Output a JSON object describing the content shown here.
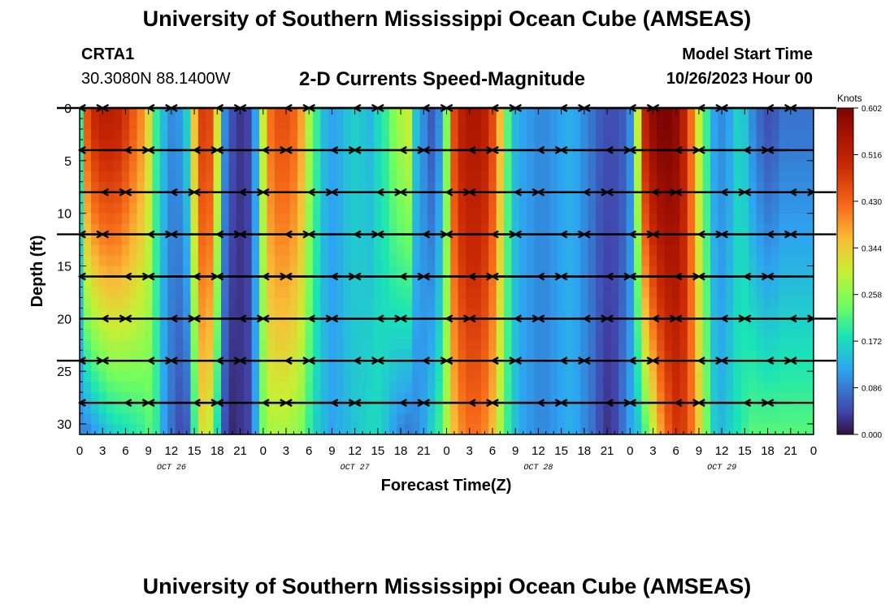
{
  "header": {
    "title": "University of Southern Mississippi Ocean Cube (AMSEAS)",
    "station_id": "CRTA1",
    "station_coords": "30.3080N  88.1400W",
    "subtitle": "2-D Currents Speed-Magnitude",
    "model_start_label": "Model Start Time",
    "model_start_value": "10/26/2023 Hour 00"
  },
  "footer": {
    "title": "University of Southern Mississippi Ocean Cube (AMSEAS)"
  },
  "chart_data": {
    "type": "heatmap",
    "title": "2-D Currents Speed-Magnitude",
    "xlabel": "Forecast Time(Z)",
    "ylabel": "Depth (ft)",
    "xlim": [
      0,
      96
    ],
    "ylim": [
      31,
      0
    ],
    "x_tick_labels": [
      "0",
      "3",
      "6",
      "9",
      "12",
      "15",
      "18",
      "21",
      "0",
      "3",
      "6",
      "9",
      "12",
      "15",
      "18",
      "21",
      "0",
      "3",
      "6",
      "9",
      "12",
      "15",
      "18",
      "21",
      "0",
      "3",
      "6",
      "9",
      "12",
      "15",
      "18",
      "21",
      "0"
    ],
    "y_ticks": [
      0,
      5,
      10,
      15,
      20,
      25,
      30
    ],
    "y_tick_labels": [
      "0",
      "5",
      "10",
      "15",
      "20",
      "25",
      "30"
    ],
    "day_labels": [
      {
        "text": "OCT 26",
        "hour": 12
      },
      {
        "text": "OCT 27",
        "hour": 36
      },
      {
        "text": "OCT 28",
        "hour": 60
      },
      {
        "text": "OCT 29",
        "hour": 84
      }
    ],
    "colorbar": {
      "units": "Knots",
      "ticks": [
        0.602,
        0.516,
        0.43,
        0.344,
        0.258,
        0.172,
        0.086,
        0.0
      ],
      "tick_labels": [
        "0.602",
        "0.516",
        "0.430",
        "0.344",
        "0.258",
        "0.172",
        "0.086",
        "0.000"
      ],
      "range": [
        0.0,
        0.602
      ]
    },
    "speed_profile": {
      "hours": [
        0,
        1,
        2,
        3,
        4,
        5,
        6,
        7,
        8,
        9,
        10,
        11,
        12,
        13,
        14,
        15,
        16,
        17,
        18,
        19,
        20,
        21,
        22,
        23,
        24,
        25,
        26,
        27,
        28,
        29,
        30,
        31,
        32,
        33,
        34,
        35,
        36,
        37,
        38,
        39,
        40,
        41,
        42,
        43,
        44,
        45,
        46,
        47,
        48,
        49,
        50,
        51,
        52,
        53,
        54,
        55,
        56,
        57,
        58,
        59,
        60,
        61,
        62,
        63,
        64,
        65,
        66,
        67,
        68,
        69,
        70,
        71,
        72,
        73,
        74,
        75,
        76,
        77,
        78,
        79,
        80,
        81,
        82,
        83,
        84,
        85,
        86,
        87,
        88,
        89,
        90,
        91,
        92,
        93,
        94,
        95,
        96
      ],
      "surface_knots": [
        0.2,
        0.45,
        0.5,
        0.52,
        0.52,
        0.51,
        0.48,
        0.44,
        0.4,
        0.33,
        0.2,
        0.14,
        0.1,
        0.11,
        0.16,
        0.35,
        0.47,
        0.46,
        0.32,
        0.1,
        0.05,
        0.03,
        0.04,
        0.12,
        0.3,
        0.42,
        0.45,
        0.45,
        0.43,
        0.38,
        0.28,
        0.2,
        0.14,
        0.12,
        0.13,
        0.15,
        0.16,
        0.15,
        0.14,
        0.17,
        0.2,
        0.25,
        0.28,
        0.3,
        0.15,
        0.1,
        0.06,
        0.1,
        0.25,
        0.46,
        0.52,
        0.54,
        0.54,
        0.52,
        0.46,
        0.36,
        0.22,
        0.14,
        0.12,
        0.11,
        0.1,
        0.1,
        0.11,
        0.12,
        0.13,
        0.12,
        0.1,
        0.08,
        0.06,
        0.05,
        0.05,
        0.06,
        0.1,
        0.3,
        0.52,
        0.58,
        0.6,
        0.6,
        0.58,
        0.52,
        0.42,
        0.3,
        0.2,
        0.12,
        0.1,
        0.12,
        0.16,
        0.15,
        0.1,
        0.07,
        0.05,
        0.06,
        0.08,
        0.08,
        0.08,
        0.08,
        0.08
      ],
      "bottom_knots": [
        0.1,
        0.1,
        0.12,
        0.14,
        0.16,
        0.17,
        0.18,
        0.19,
        0.2,
        0.22,
        0.2,
        0.12,
        0.08,
        0.05,
        0.06,
        0.2,
        0.32,
        0.3,
        0.18,
        0.05,
        0.02,
        0.03,
        0.04,
        0.12,
        0.24,
        0.28,
        0.28,
        0.28,
        0.27,
        0.25,
        0.2,
        0.16,
        0.14,
        0.12,
        0.13,
        0.14,
        0.15,
        0.16,
        0.17,
        0.17,
        0.15,
        0.12,
        0.1,
        0.09,
        0.1,
        0.12,
        0.16,
        0.2,
        0.28,
        0.36,
        0.4,
        0.42,
        0.42,
        0.4,
        0.36,
        0.28,
        0.2,
        0.15,
        0.12,
        0.11,
        0.1,
        0.1,
        0.11,
        0.12,
        0.13,
        0.12,
        0.1,
        0.08,
        0.05,
        0.03,
        0.04,
        0.08,
        0.12,
        0.15,
        0.22,
        0.3,
        0.38,
        0.44,
        0.48,
        0.47,
        0.42,
        0.34,
        0.24,
        0.16,
        0.14,
        0.16,
        0.18,
        0.2,
        0.22,
        0.22,
        0.22,
        0.22,
        0.22,
        0.22,
        0.22,
        0.22,
        0.22
      ]
    },
    "vector_columns_hours": [
      0,
      3,
      6,
      9,
      12,
      15,
      18,
      21,
      24,
      27,
      30,
      33,
      36,
      39,
      42,
      45,
      48,
      51,
      54,
      57,
      60,
      63,
      66,
      69,
      72,
      75,
      78,
      81,
      84,
      87,
      90,
      93,
      96
    ],
    "vector_depths_ft": [
      0,
      4,
      8,
      12,
      16,
      20,
      24,
      28
    ]
  }
}
